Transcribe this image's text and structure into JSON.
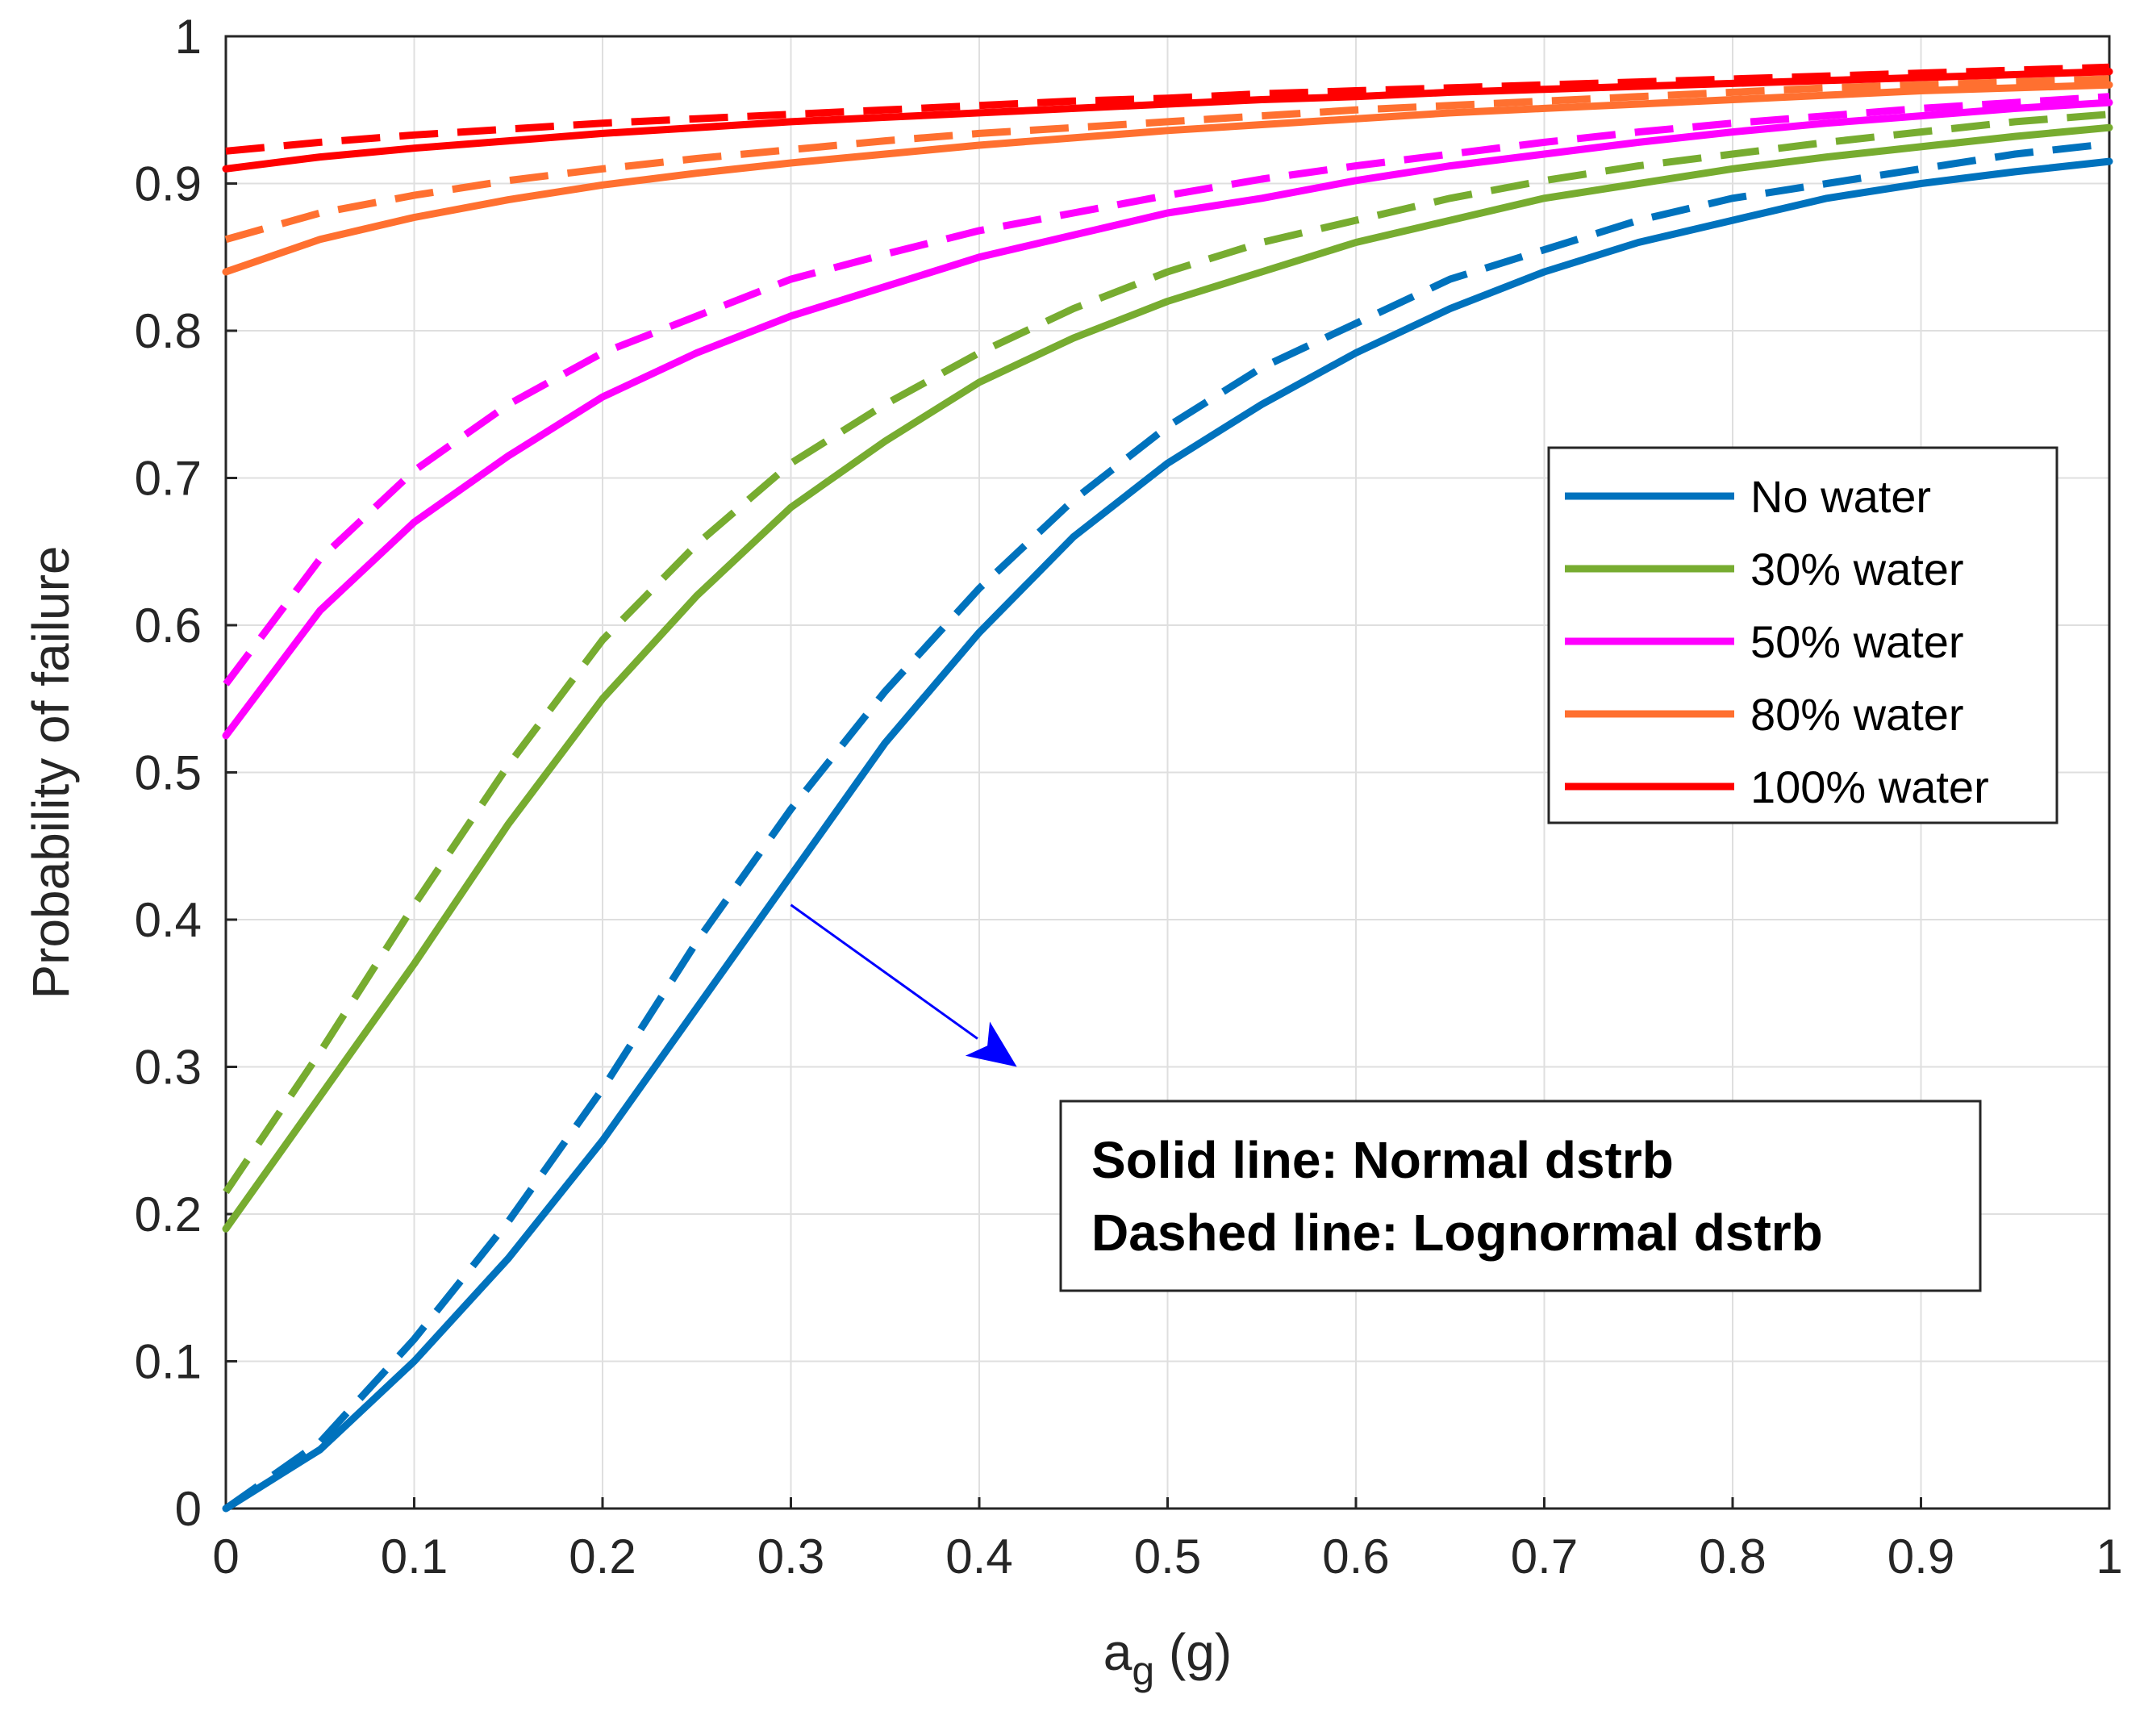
{
  "chart_data": {
    "type": "line",
    "xlabel": "a",
    "xlabel_subscript": "g",
    "xlabel_unit": " (g)",
    "ylabel": "Probability of failure",
    "xlim": [
      0,
      1
    ],
    "ylim": [
      0,
      1
    ],
    "x_ticks": [
      "0",
      "0.1",
      "0.2",
      "0.3",
      "0.4",
      "0.5",
      "0.6",
      "0.7",
      "0.8",
      "0.9",
      "1"
    ],
    "y_ticks": [
      "0",
      "0.1",
      "0.2",
      "0.3",
      "0.4",
      "0.5",
      "0.6",
      "0.7",
      "0.8",
      "0.9",
      "1"
    ],
    "grid": true,
    "legend_position": "right",
    "x": [
      0,
      0.05,
      0.1,
      0.15,
      0.2,
      0.25,
      0.3,
      0.35,
      0.4,
      0.45,
      0.5,
      0.55,
      0.6,
      0.65,
      0.7,
      0.75,
      0.8,
      0.85,
      0.9,
      0.95,
      1.0
    ],
    "series": [
      {
        "name": "No water",
        "color": "#0072bd",
        "normal": [
          0.0,
          0.04,
          0.1,
          0.17,
          0.25,
          0.34,
          0.43,
          0.52,
          0.595,
          0.66,
          0.71,
          0.75,
          0.785,
          0.815,
          0.84,
          0.86,
          0.875,
          0.89,
          0.9,
          0.908,
          0.915
        ],
        "lognormal": [
          0.0,
          0.045,
          0.115,
          0.195,
          0.285,
          0.385,
          0.475,
          0.555,
          0.625,
          0.685,
          0.735,
          0.775,
          0.805,
          0.835,
          0.855,
          0.875,
          0.89,
          0.9,
          0.91,
          0.92,
          0.927
        ]
      },
      {
        "name": "30% water",
        "color": "#77ac30",
        "normal": [
          0.19,
          0.28,
          0.37,
          0.465,
          0.55,
          0.62,
          0.68,
          0.725,
          0.765,
          0.795,
          0.82,
          0.84,
          0.86,
          0.875,
          0.89,
          0.9,
          0.91,
          0.918,
          0.925,
          0.932,
          0.938
        ],
        "lognormal": [
          0.215,
          0.31,
          0.41,
          0.505,
          0.59,
          0.655,
          0.71,
          0.75,
          0.785,
          0.815,
          0.84,
          0.86,
          0.875,
          0.89,
          0.902,
          0.912,
          0.92,
          0.928,
          0.935,
          0.942,
          0.947
        ]
      },
      {
        "name": "50% water",
        "color": "#ff00ff",
        "normal": [
          0.525,
          0.61,
          0.67,
          0.715,
          0.755,
          0.785,
          0.81,
          0.83,
          0.85,
          0.865,
          0.88,
          0.89,
          0.902,
          0.912,
          0.92,
          0.928,
          0.935,
          0.941,
          0.946,
          0.951,
          0.955
        ],
        "lognormal": [
          0.56,
          0.645,
          0.705,
          0.75,
          0.785,
          0.81,
          0.835,
          0.852,
          0.868,
          0.88,
          0.892,
          0.903,
          0.912,
          0.92,
          0.928,
          0.935,
          0.941,
          0.946,
          0.951,
          0.955,
          0.959
        ]
      },
      {
        "name": "80% water",
        "color": "#ff7030",
        "normal": [
          0.84,
          0.862,
          0.877,
          0.889,
          0.899,
          0.907,
          0.914,
          0.92,
          0.926,
          0.931,
          0.936,
          0.94,
          0.944,
          0.948,
          0.951,
          0.954,
          0.957,
          0.96,
          0.963,
          0.965,
          0.967
        ],
        "lognormal": [
          0.862,
          0.88,
          0.892,
          0.902,
          0.91,
          0.917,
          0.923,
          0.929,
          0.934,
          0.938,
          0.942,
          0.946,
          0.95,
          0.953,
          0.956,
          0.959,
          0.962,
          0.965,
          0.967,
          0.969,
          0.971
        ]
      },
      {
        "name": "100% water",
        "color": "#ff0000",
        "normal": [
          0.91,
          0.918,
          0.924,
          0.929,
          0.934,
          0.938,
          0.942,
          0.945,
          0.948,
          0.951,
          0.954,
          0.957,
          0.959,
          0.962,
          0.964,
          0.966,
          0.968,
          0.97,
          0.972,
          0.974,
          0.976
        ],
        "lognormal": [
          0.922,
          0.928,
          0.933,
          0.937,
          0.941,
          0.944,
          0.947,
          0.95,
          0.953,
          0.956,
          0.958,
          0.961,
          0.963,
          0.965,
          0.967,
          0.969,
          0.971,
          0.973,
          0.975,
          0.977,
          0.979
        ]
      }
    ],
    "annotation": {
      "lines": [
        "Solid line: Normal dstrb",
        "Dashed line: Lognormal dstrb"
      ],
      "arrow_color": "#0000ff",
      "arrow_from": [
        0.3,
        0.41
      ],
      "arrow_to": [
        0.42,
        0.3
      ]
    }
  }
}
